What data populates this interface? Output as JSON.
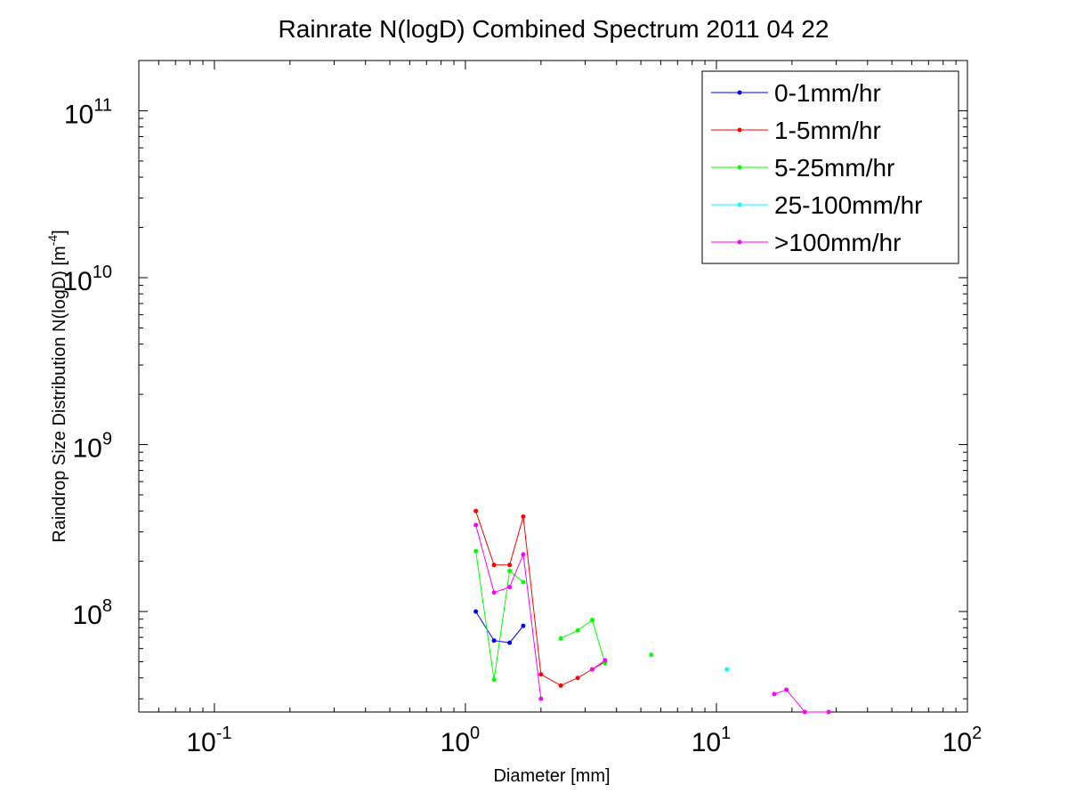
{
  "chart_data": {
    "type": "line",
    "title": "Rainrate N(logD) Combined Spectrum 2011 04 22",
    "xlabel": "Diameter [mm]",
    "ylabel_main": "Raindrop Size Distribution N(logD) [m",
    "ylabel_exp": "-4",
    "ylabel_close": "]",
    "xscale": "log",
    "yscale": "log",
    "xlim": [
      0.05,
      100
    ],
    "ylim": [
      25000000,
      200000000000
    ],
    "xticks": [
      {
        "value": 0.1,
        "base": "10",
        "exp": "-1"
      },
      {
        "value": 1,
        "base": "10",
        "exp": "0"
      },
      {
        "value": 10,
        "base": "10",
        "exp": "1"
      },
      {
        "value": 100,
        "base": "10",
        "exp": "2"
      }
    ],
    "yticks": [
      {
        "value": 100000000,
        "base": "10",
        "exp": "8"
      },
      {
        "value": 1000000000,
        "base": "10",
        "exp": "9"
      },
      {
        "value": 10000000000,
        "base": "10",
        "exp": "10"
      },
      {
        "value": 100000000000,
        "base": "10",
        "exp": "11"
      }
    ],
    "grid": false,
    "legend_position": "top-right",
    "series": [
      {
        "name": "0-1mm/hr",
        "color": "#0000ff",
        "x": [
          1.1,
          1.3,
          1.5,
          1.7
        ],
        "y": [
          100000000,
          67000000,
          65000000,
          82000000
        ]
      },
      {
        "name": "1-5mm/hr",
        "color": "#ff0000",
        "x": [
          1.1,
          1.3,
          1.5,
          1.7,
          2.0,
          2.4,
          2.8,
          3.2,
          3.6
        ],
        "y": [
          400000000,
          190000000,
          190000000,
          370000000,
          42000000,
          36000000,
          40000000,
          45000000,
          50000000
        ]
      },
      {
        "name": "5-25mm/hr",
        "color": "#00ff00",
        "x": [
          1.1,
          1.3,
          1.5,
          1.7,
          null,
          2.4,
          2.8,
          3.2,
          3.6,
          null,
          5.5
        ],
        "y": [
          230000000,
          39000000,
          175000000,
          150000000,
          null,
          69000000,
          77000000,
          89000000,
          49000000,
          null,
          55000000
        ]
      },
      {
        "name": "25-100mm/hr",
        "color": "#00ffff",
        "x": [
          11
        ],
        "y": [
          45000000
        ]
      },
      {
        "name": ">100mm/hr",
        "color": "#ff00ff",
        "x": [
          1.1,
          1.3,
          1.5,
          1.7,
          2.0,
          null,
          3.2,
          3.6,
          null,
          17,
          19,
          22.5,
          28
        ],
        "y": [
          330000000,
          130000000,
          140000000,
          220000000,
          30000000,
          null,
          45000000,
          51000000,
          null,
          32000000,
          34000000,
          25000000,
          25000000
        ]
      }
    ]
  }
}
